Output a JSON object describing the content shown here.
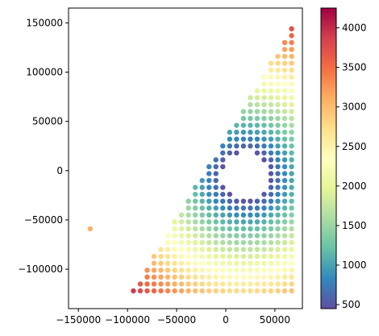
{
  "chart_data": {
    "type": "scatter",
    "title": "",
    "xlabel": "",
    "ylabel": "",
    "xlim": [
      -160000,
      78000
    ],
    "ylim": [
      -140000,
      165000
    ],
    "x_ticks": [
      -150000,
      -100000,
      -50000,
      0,
      50000
    ],
    "x_tick_labels": [
      "−150000",
      "−100000",
      "−50000",
      "0",
      "50000"
    ],
    "y_ticks": [
      -100000,
      -50000,
      0,
      50000,
      100000,
      150000
    ],
    "y_tick_labels": [
      "−100000",
      "−50000",
      "0",
      "50000",
      "100000",
      "150000"
    ],
    "grid": false,
    "colormap": "Spectral_r",
    "colormap_stops": [
      "#5e4fa2",
      "#3288bd",
      "#66c2a5",
      "#abdda4",
      "#e6f598",
      "#ffffbf",
      "#fee08b",
      "#fdae61",
      "#f46d43",
      "#d53e4f",
      "#9e0142"
    ],
    "color_range": [
      450,
      4250
    ],
    "colorbar_ticks": [
      500,
      1000,
      1500,
      2000,
      2500,
      3000,
      3500,
      4000
    ],
    "colorbar_tick_labels": [
      "500",
      "1000",
      "1500",
      "2000",
      "2500",
      "3000",
      "3500",
      "4000"
    ],
    "colorbar_position": "right",
    "grid_points": {
      "description_of_sampling": "regular lattice, spacing 7000 in both x and y",
      "x_range": [
        -150000,
        70000
      ],
      "y_range": [
        -122000,
        148000
      ],
      "spacing": 7000,
      "bulk_centre": [
        20000,
        -5000
      ],
      "inner_radius": 24000,
      "outer_radius": 178000,
      "boundary_line": {
        "point": [
          62000,
          136000
        ],
        "direction": [
          -0.52,
          -0.854
        ]
      },
      "value_at_inner_radius": 450,
      "value_at_outer_radius": 4250
    },
    "gaps": [
      {
        "x": -95000,
        "y": -35000
      },
      {
        "x": -96000,
        "y": -49000
      },
      {
        "x": -92000,
        "y": -50000
      }
    ],
    "outlier": {
      "x": -138000,
      "y": -59000,
      "value": 3100
    }
  }
}
